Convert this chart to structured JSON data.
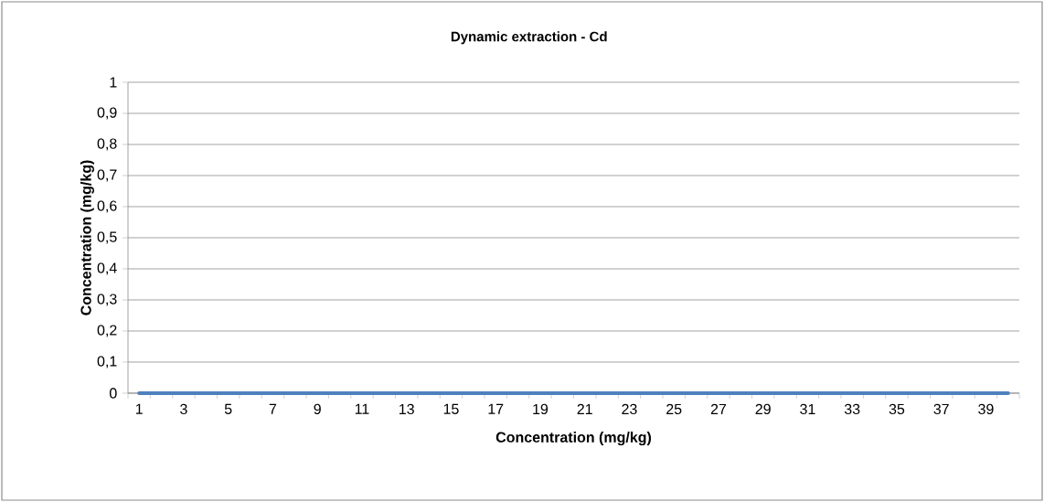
{
  "chart_data": {
    "type": "line",
    "title": "Dynamic extraction - Cd",
    "xlabel": "Concentration (mg/kg)",
    "ylabel": "Concentration (mg/kg)",
    "categories": [
      "1",
      null,
      "3",
      null,
      "5",
      null,
      "7",
      null,
      "9",
      null,
      "11",
      null,
      "13",
      null,
      "15",
      null,
      "17",
      null,
      "19",
      null,
      "21",
      null,
      "23",
      null,
      "25",
      null,
      "27",
      null,
      "29",
      null,
      "31",
      null,
      "33",
      null,
      "35",
      null,
      "37",
      null,
      "39",
      null
    ],
    "series": [
      {
        "color": "#4f81bd",
        "values": [
          0,
          0,
          0,
          0,
          0,
          0,
          0,
          0,
          0,
          0,
          0,
          0,
          0,
          0,
          0,
          0,
          0,
          0,
          0,
          0,
          0,
          0,
          0,
          0,
          0,
          0,
          0,
          0,
          0,
          0,
          0,
          0,
          0,
          0,
          0,
          0,
          0,
          0,
          0,
          0
        ]
      }
    ],
    "ylim": [
      0,
      1
    ],
    "yticks": [
      0,
      {
        "value": 0.1,
        "label": "0,1"
      },
      {
        "value": 0.2,
        "label": "0,2"
      },
      {
        "value": 0.3,
        "label": "0,3"
      },
      {
        "value": 0.4,
        "label": "0,4"
      },
      {
        "value": 0.5,
        "label": "0,5"
      },
      {
        "value": 0.6,
        "label": "0,6"
      },
      {
        "value": 0.7,
        "label": "0,7"
      },
      {
        "value": 0.8,
        "label": "0,8"
      },
      {
        "value": 0.9,
        "label": "0,9"
      },
      1
    ],
    "grid": "y",
    "marker": "none",
    "line_style": "solid"
  }
}
